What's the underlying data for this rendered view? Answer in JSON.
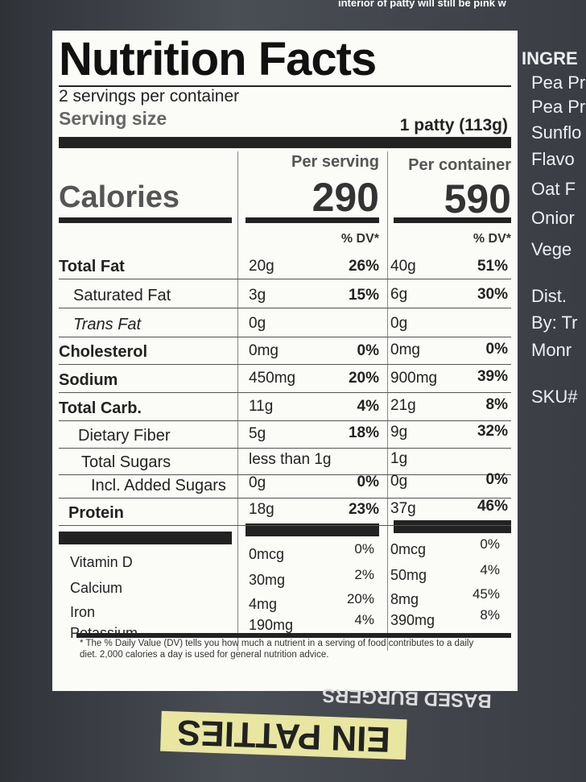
{
  "top_text": "interior of patty will still be pink w",
  "label": {
    "title": "Nutrition Facts",
    "servings": "2 servings per container",
    "serving_size_label": "Serving size",
    "serving_size_value": "1 patty (113g)",
    "column_headers": [
      "Per serving",
      "Per container"
    ],
    "calories_label": "Calories",
    "calories": [
      "290",
      "590"
    ],
    "dv_headers": [
      "% DV*",
      "% DV*"
    ],
    "nutrients": [
      [
        "Total Fat",
        "20g",
        "26%",
        "40g",
        "51%"
      ],
      [
        "Saturated Fat",
        "3g",
        "15%",
        "6g",
        "30%"
      ],
      [
        "Trans Fat",
        "0g",
        "",
        "0g",
        ""
      ],
      [
        "Cholesterol",
        "0mg",
        "0%",
        "0mg",
        "0%"
      ],
      [
        "Sodium",
        "450mg",
        "20%",
        "900mg",
        "39%"
      ],
      [
        "Total Carb.",
        "11g",
        "4%",
        "21g",
        "8%"
      ],
      [
        "Dietary Fiber",
        "5g",
        "18%",
        "9g",
        "32%"
      ],
      [
        "Total Sugars",
        "less than 1g",
        "",
        "1g",
        ""
      ],
      [
        "Incl. Added Sugars",
        "0g",
        "0%",
        "0g",
        "0%"
      ],
      [
        "Protein",
        "18g",
        "23%",
        "37g",
        "46%"
      ]
    ],
    "vitamins": [
      [
        "Vitamin D",
        "0mcg",
        "0%",
        "0mcg",
        "0%"
      ],
      [
        "Calcium",
        "30mg",
        "2%",
        "50mg",
        "4%"
      ],
      [
        "Iron",
        "4mg",
        "20%",
        "8mg",
        "45%"
      ],
      [
        "Potassium",
        "190mg",
        "4%",
        "390mg",
        "8%"
      ]
    ],
    "footnote": "* The % Daily Value (DV) tells you how much a nutrient in a serving of food contributes to a daily diet. 2,000 calories a day is used for general nutrition advice."
  },
  "side_text": [
    "INGRE",
    "Pea Pr",
    "Pea Pr",
    "Sunflo",
    "Flavo",
    "Oat F",
    "Onior",
    "Vege",
    "Dist.",
    "By: Tr",
    "Monr",
    "SKU#"
  ],
  "bottom_text": [
    "BASED BURGERS",
    "EIN PATTIES"
  ]
}
